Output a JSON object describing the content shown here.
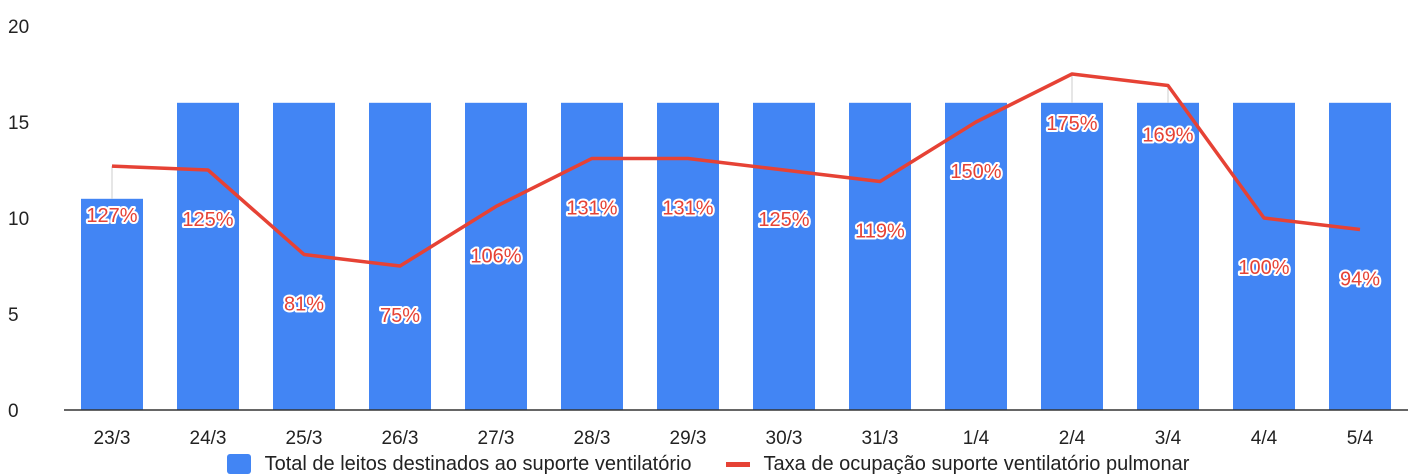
{
  "chart_data": {
    "type": "bar",
    "title": "",
    "xlabel": "",
    "ylabel": "",
    "ylim": [
      0,
      20
    ],
    "yticks": [
      0,
      5,
      10,
      15,
      20
    ],
    "grid": false,
    "legend_position": "bottom",
    "categories": [
      "23/3",
      "24/3",
      "25/3",
      "26/3",
      "27/3",
      "28/3",
      "29/3",
      "30/3",
      "31/3",
      "1/4",
      "2/4",
      "3/4",
      "4/4",
      "5/4"
    ],
    "series": [
      {
        "name": "Total de leitos destinados ao suporte ventilatório",
        "type": "bar",
        "color": "#4285f4",
        "values": [
          11,
          16,
          16,
          16,
          16,
          16,
          16,
          16,
          16,
          16,
          16,
          16,
          16,
          16
        ]
      },
      {
        "name": "Taxa de ocupação suporte ventilatório pulmonar",
        "type": "line",
        "color": "#e64235",
        "values": [
          127,
          125,
          81,
          75,
          106,
          131,
          131,
          125,
          119,
          150,
          175,
          169,
          100,
          94
        ],
        "labels": [
          "127%",
          "125%",
          "81%",
          "75%",
          "106%",
          "131%",
          "131%",
          "125%",
          "119%",
          "150%",
          "175%",
          "169%",
          "100%",
          "94%"
        ]
      }
    ]
  }
}
